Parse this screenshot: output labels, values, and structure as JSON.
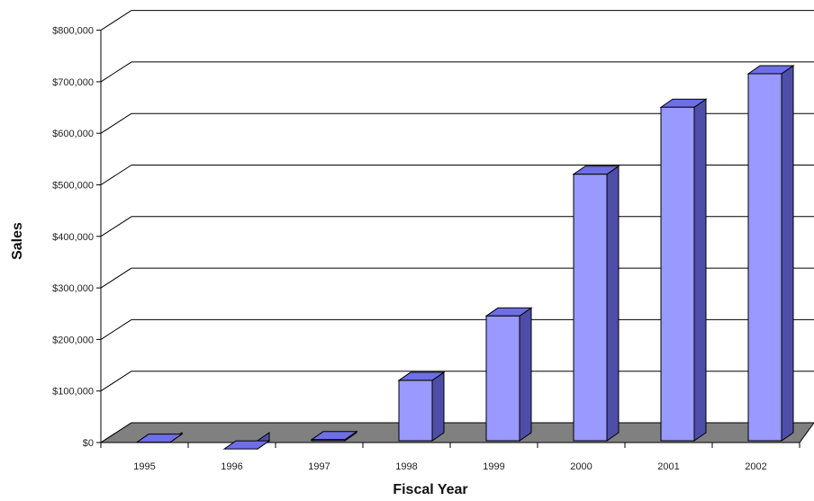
{
  "chart_data": {
    "type": "bar",
    "categories": [
      "1995",
      "1996",
      "1997",
      "1998",
      "1999",
      "2000",
      "2001",
      "2002"
    ],
    "values": [
      25000,
      12000,
      30000,
      145000,
      270000,
      545000,
      675000,
      740000
    ],
    "xlabel": "Fiscal Year",
    "ylabel": "Sales",
    "ylim": [
      0,
      800000
    ],
    "yticks": [
      "$0",
      "$100,000",
      "$200,000",
      "$300,000",
      "$400,000",
      "$500,000",
      "$600,000",
      "$700,000",
      "$800,000"
    ],
    "grid": true,
    "three_d": true,
    "colors": {
      "bar_front": "#9999ff",
      "bar_top": "#6e6ee6",
      "bar_side": "#4e4ea8",
      "floor": "#808080",
      "gridline": "#000000"
    }
  }
}
